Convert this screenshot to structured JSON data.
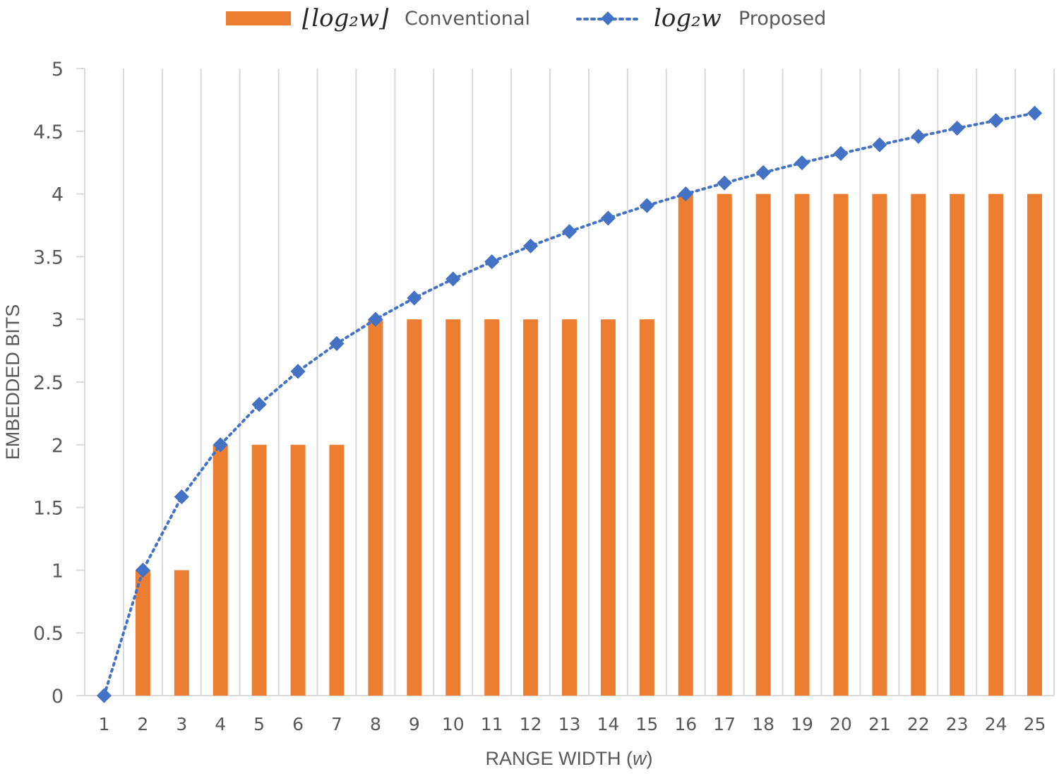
{
  "chart_data": {
    "type": "bar",
    "xlabel_prefix": "RANGE WIDTH (",
    "xlabel_var": "w",
    "xlabel_suffix": ")",
    "ylabel": "EMBEDDED BITS",
    "ylim": [
      0,
      5
    ],
    "yticks": [
      "0",
      "0.5",
      "1",
      "1.5",
      "2",
      "2.5",
      "3",
      "3.5",
      "4",
      "4.5",
      "5"
    ],
    "categories": [
      "1",
      "2",
      "3",
      "4",
      "5",
      "6",
      "7",
      "8",
      "9",
      "10",
      "11",
      "12",
      "13",
      "14",
      "15",
      "16",
      "17",
      "18",
      "19",
      "20",
      "21",
      "22",
      "23",
      "24",
      "25"
    ],
    "grid": true,
    "legend_position": "top-center",
    "series": [
      {
        "name": "Conventional",
        "formula": "⌊log₂w⌋",
        "type": "bar",
        "color": "#ED7D31",
        "values": [
          0,
          1,
          1,
          2,
          2,
          2,
          2,
          3,
          3,
          3,
          3,
          3,
          3,
          3,
          3,
          4,
          4,
          4,
          4,
          4,
          4,
          4,
          4,
          4,
          4
        ]
      },
      {
        "name": "Proposed",
        "formula": "log₂w",
        "type": "line",
        "style": "dotted",
        "marker": "diamond",
        "color": "#4472C4",
        "values": [
          0,
          1,
          1.585,
          2,
          2.322,
          2.585,
          2.807,
          3,
          3.17,
          3.322,
          3.459,
          3.585,
          3.7,
          3.807,
          3.907,
          4,
          4.087,
          4.17,
          4.248,
          4.322,
          4.392,
          4.459,
          4.524,
          4.585,
          4.644
        ]
      }
    ]
  }
}
